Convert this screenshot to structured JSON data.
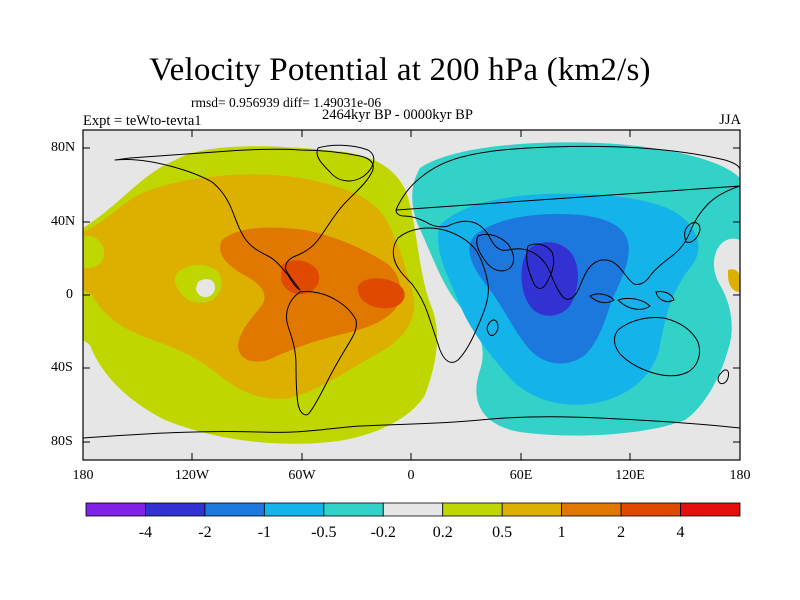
{
  "title": "Velocity Potential at 200 hPa (km2/s)",
  "stats": "rmsd= 0.956939 diff= 1.49031e-06",
  "period": "2464kyr BP - 0000kyr BP",
  "experiment": "Expt = teWto-tevta1",
  "season": "JJA",
  "map": {
    "projection": "cylindrical-equidistant",
    "lon_range": [
      -180,
      180
    ],
    "lat_range": [
      -90,
      90
    ],
    "background": "#e6e6e6",
    "coastline_color": "#000000",
    "lat_ticks": [
      "80N",
      "40N",
      "0",
      "40S",
      "80S"
    ],
    "lon_ticks": [
      "180",
      "120W",
      "60W",
      "0",
      "60E",
      "120E",
      "180"
    ],
    "regions": [
      {
        "name": "western-hemisphere-positive",
        "level": "0.5 to 1",
        "color": "#ddb000"
      },
      {
        "name": "pacific-atlantic-band",
        "level": "0.2 to 0.5",
        "color": "#bfd600"
      },
      {
        "name": "caribbean-core",
        "level": "1 to 2",
        "color": "#e07800"
      },
      {
        "name": "caribbean-max",
        "level": "2 to 4",
        "color": "#e04a00"
      },
      {
        "name": "eastern-hemisphere-negative",
        "level": "-0.5 to -0.2",
        "color": "#33d2c8"
      },
      {
        "name": "indian-ocean-broad",
        "level": "-1 to -0.5",
        "color": "#14b4ea"
      },
      {
        "name": "indian-ocean-core",
        "level": "-2 to -1",
        "color": "#1c78dc"
      },
      {
        "name": "indian-ocean-min",
        "level": "-4 to -2",
        "color": "#3232d2"
      }
    ]
  },
  "colorbar": {
    "colors": [
      "#7f22e6",
      "#3232d2",
      "#1c78dc",
      "#14b4ea",
      "#33d2c8",
      "#e6e6e6",
      "#bfd600",
      "#ddb000",
      "#e07800",
      "#e04a00",
      "#e60f0f"
    ],
    "labels": [
      "-4",
      "-2",
      "-1",
      "-0.5",
      "-0.2",
      "0.2",
      "0.5",
      "1",
      "2",
      "4"
    ]
  }
}
